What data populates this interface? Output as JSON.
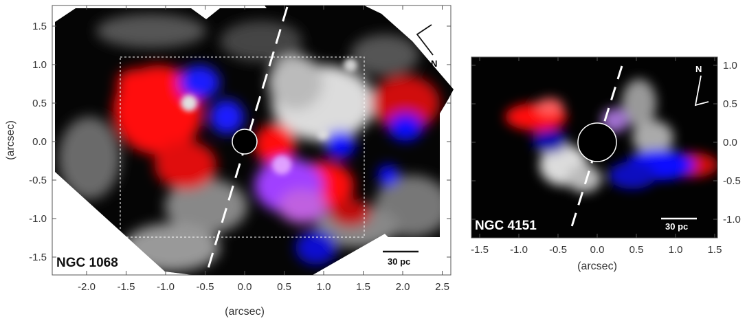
{
  "figure": {
    "panels": [
      {
        "object": "NGC 1068",
        "xlabel": "(arcsec)",
        "ylabel": "(arcsec)",
        "xticks": [
          "-2.0",
          "-1.5",
          "-1.0",
          "-0.5",
          "0.0",
          "0.5",
          "1.0",
          "1.5",
          "2.0",
          "2.5"
        ],
        "yticks": [
          "1.5",
          "1.0",
          "0.5",
          "0.0",
          "-0.5",
          "-1.0",
          "-1.5"
        ],
        "scale_bar": "30 pc",
        "compass": "N"
      },
      {
        "object": "NGC 4151",
        "xlabel": "(arcsec)",
        "xticks": [
          "-1.5",
          "-1.0",
          "-0.5",
          "0.0",
          "0.5",
          "1.0",
          "1.5"
        ],
        "yticks": [
          "1.0",
          "0.5",
          "0.0",
          "-0.5",
          "-1.0"
        ],
        "scale_bar": "30 pc",
        "compass": "N"
      }
    ],
    "colors": {
      "redshift_emission": "#ff1a1a",
      "blueshift_emission": "#1a1aff",
      "continuum": "#d8d8d8",
      "background": "#000000"
    }
  }
}
